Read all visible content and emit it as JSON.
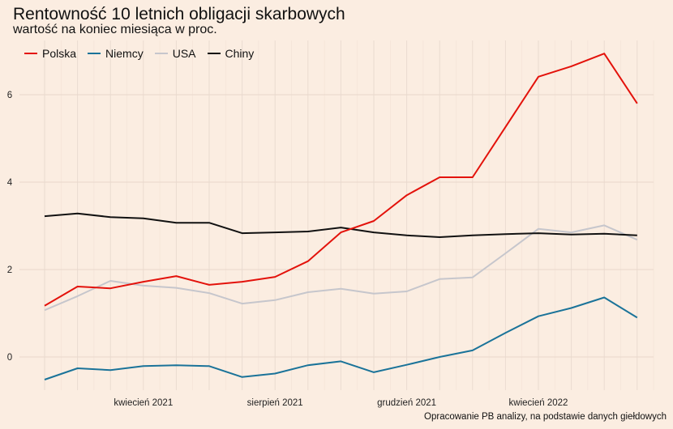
{
  "chart_data": {
    "type": "line",
    "title": "Rentowność 10 letnich obligacji skarbowych",
    "subtitle": "wartość na koniec miesiąca w proc.",
    "caption": "Opracowanie PB analizy, na podstawie danych giełdowych",
    "xlabel": "",
    "ylabel": "",
    "x": [
      "2021-01",
      "2021-02",
      "2021-03",
      "2021-04",
      "2021-05",
      "2021-06",
      "2021-07",
      "2021-08",
      "2021-09",
      "2021-10",
      "2021-11",
      "2021-12",
      "2022-01",
      "2022-02",
      "2022-03",
      "2022-04",
      "2022-05",
      "2022-06",
      "2022-07"
    ],
    "x_ticks": [
      {
        "index": 3,
        "label": "kwiecień 2021"
      },
      {
        "index": 7,
        "label": "sierpień 2021"
      },
      {
        "index": 11,
        "label": "grudzień 2021"
      },
      {
        "index": 15,
        "label": "kwiecień 2022"
      }
    ],
    "y_ticks": [
      0,
      2,
      4,
      6
    ],
    "ylim": [
      -0.76,
      7.24
    ],
    "grid": true,
    "legend_position": "top-left",
    "series": [
      {
        "name": "Polska",
        "color": "#e3120b",
        "values": [
          1.17,
          1.61,
          1.57,
          1.72,
          1.85,
          1.65,
          1.72,
          1.83,
          2.19,
          2.85,
          3.11,
          3.7,
          4.11,
          4.11,
          5.26,
          6.41,
          6.65,
          6.94,
          5.8
        ]
      },
      {
        "name": "Niemcy",
        "color": "#1a7399",
        "values": [
          -0.52,
          -0.26,
          -0.3,
          -0.21,
          -0.19,
          -0.21,
          -0.46,
          -0.38,
          -0.19,
          -0.1,
          -0.35,
          -0.18,
          0.0,
          0.15,
          0.55,
          0.93,
          1.12,
          1.36,
          0.9
        ]
      },
      {
        "name": "USA",
        "color": "#c6c6cc",
        "values": [
          1.07,
          1.39,
          1.74,
          1.63,
          1.58,
          1.46,
          1.22,
          1.3,
          1.48,
          1.56,
          1.45,
          1.5,
          1.78,
          1.82,
          2.37,
          2.93,
          2.85,
          3.01,
          2.68
        ]
      },
      {
        "name": "Chiny",
        "color": "#111111",
        "values": [
          3.22,
          3.28,
          3.2,
          3.17,
          3.07,
          3.07,
          2.83,
          2.85,
          2.87,
          2.96,
          2.85,
          2.78,
          2.74,
          2.78,
          2.81,
          2.83,
          2.8,
          2.82,
          2.78
        ]
      }
    ]
  }
}
